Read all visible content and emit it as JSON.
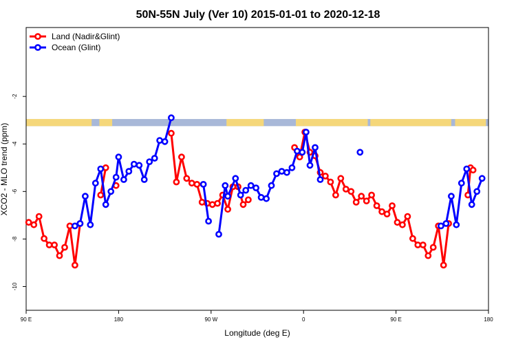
{
  "chart_data": {
    "type": "line",
    "title": "50N-55N July (Ver 10)   2015-01-01 to 2020-12-18",
    "xlabel": "Longitude (deg E)",
    "ylabel": "XCO2 - MLO trend (ppm)",
    "xlim": [
      90,
      450
    ],
    "ylim": [
      -11,
      0.9
    ],
    "x_ticks": [
      {
        "value": 90,
        "label": "90 E"
      },
      {
        "value": 162,
        "label": "180"
      },
      {
        "value": 234,
        "label": "90 W"
      },
      {
        "value": 306,
        "label": "0"
      },
      {
        "value": 378,
        "label": "90 E"
      },
      {
        "value": 450,
        "label": "180"
      }
    ],
    "y_ticks": [
      {
        "value": -2,
        "label": "-2"
      },
      {
        "value": -4,
        "label": "-4"
      },
      {
        "value": -6,
        "label": "-6"
      },
      {
        "value": -8,
        "label": "-8"
      },
      {
        "value": -10,
        "label": "-10"
      }
    ],
    "legend_position": "top-left",
    "land_mask_band": {
      "y_top": -2.95,
      "y_bottom": -3.25,
      "ocean_color": "#a8b8d8",
      "land_color": "#f5d77a"
    },
    "series": [
      {
        "name": "Land (Nadir&Glint)",
        "color": "#ff0000",
        "points": [
          [
            92,
            -7.3
          ],
          [
            96,
            -7.4
          ],
          [
            100,
            -7.05
          ],
          [
            104,
            -7.98
          ],
          [
            108,
            -8.25
          ],
          [
            112,
            -8.25
          ],
          [
            116,
            -8.7
          ],
          [
            120,
            -8.35
          ],
          [
            124,
            -7.45
          ],
          [
            128,
            -9.1
          ],
          [
            132,
            -7.35
          ],
          [
            148,
            -6.15
          ],
          [
            152,
            -5.0
          ],
          [
            160,
            -5.75
          ],
          [
            203,
            -3.55
          ],
          [
            207,
            -5.6
          ],
          [
            211,
            -4.55
          ],
          [
            215,
            -5.45
          ],
          [
            219,
            -5.65
          ],
          [
            223,
            -5.7
          ],
          [
            227,
            -6.45
          ],
          [
            231,
            -6.5
          ],
          [
            235,
            -6.55
          ],
          [
            239,
            -6.5
          ],
          [
            243,
            -6.15
          ],
          [
            247,
            -6.75
          ],
          [
            251,
            -5.8
          ],
          [
            255,
            -5.8
          ],
          [
            259,
            -6.55
          ],
          [
            263,
            -6.35
          ],
          [
            299,
            -4.15
          ],
          [
            303,
            -4.55
          ],
          [
            307,
            -3.5
          ],
          [
            311,
            -4.35
          ],
          [
            315,
            -4.5
          ],
          [
            319,
            -5.2
          ],
          [
            323,
            -5.35
          ],
          [
            327,
            -5.6
          ],
          [
            331,
            -6.15
          ],
          [
            335,
            -5.45
          ],
          [
            339,
            -5.9
          ],
          [
            343,
            -6.0
          ],
          [
            347,
            -6.45
          ],
          [
            351,
            -6.2
          ],
          [
            355,
            -6.4
          ],
          [
            359,
            -6.15
          ],
          [
            363,
            -6.6
          ],
          [
            367,
            -6.85
          ],
          [
            371,
            -6.95
          ],
          [
            375,
            -6.6
          ],
          [
            379,
            -7.3
          ],
          [
            383,
            -7.4
          ],
          [
            387,
            -7.05
          ],
          [
            391,
            -7.98
          ],
          [
            395,
            -8.25
          ],
          [
            399,
            -8.25
          ],
          [
            403,
            -8.7
          ],
          [
            407,
            -8.35
          ],
          [
            411,
            -7.45
          ],
          [
            415,
            -9.1
          ],
          [
            419,
            -7.35
          ],
          [
            434,
            -6.15
          ],
          [
            436,
            -5.0
          ],
          [
            438,
            -5.1
          ]
        ]
      },
      {
        "name": "Ocean (Glint)",
        "color": "#0000ff",
        "points": [
          [
            128,
            -7.45
          ],
          [
            132,
            -7.35
          ],
          [
            136,
            -6.2
          ],
          [
            140,
            -7.4
          ],
          [
            144,
            -5.65
          ],
          [
            148,
            -5.05
          ],
          [
            152,
            -6.55
          ],
          [
            156,
            -6.0
          ],
          [
            160,
            -5.4
          ],
          [
            162,
            -4.55
          ],
          [
            166,
            -5.5
          ],
          [
            170,
            -5.15
          ],
          [
            174,
            -4.85
          ],
          [
            178,
            -4.9
          ],
          [
            182,
            -5.5
          ],
          [
            186,
            -4.75
          ],
          [
            190,
            -4.6
          ],
          [
            194,
            -3.85
          ],
          [
            198,
            -3.9
          ],
          [
            203,
            -2.9
          ],
          [
            228,
            -5.7
          ],
          [
            232,
            -7.25
          ],
          [
            240,
            -7.8
          ],
          [
            245,
            -5.75
          ],
          [
            247,
            -6.2
          ],
          [
            253,
            -5.45
          ],
          [
            257,
            -6.15
          ],
          [
            261,
            -5.95
          ],
          [
            265,
            -5.75
          ],
          [
            269,
            -5.85
          ],
          [
            273,
            -6.25
          ],
          [
            277,
            -6.3
          ],
          [
            281,
            -5.75
          ],
          [
            285,
            -5.25
          ],
          [
            289,
            -5.15
          ],
          [
            293,
            -5.2
          ],
          [
            297,
            -5.0
          ],
          [
            301,
            -4.3
          ],
          [
            305,
            -4.35
          ],
          [
            308,
            -3.5
          ],
          [
            311,
            -4.9
          ],
          [
            315,
            -4.15
          ],
          [
            319,
            -5.5
          ],
          [
            350,
            -4.35
          ],
          [
            413,
            -7.45
          ],
          [
            417,
            -7.35
          ],
          [
            421,
            -6.2
          ],
          [
            425,
            -7.4
          ],
          [
            429,
            -5.65
          ],
          [
            433,
            -5.05
          ],
          [
            437,
            -6.55
          ],
          [
            441,
            -6.0
          ],
          [
            445,
            -5.45
          ]
        ]
      }
    ]
  }
}
